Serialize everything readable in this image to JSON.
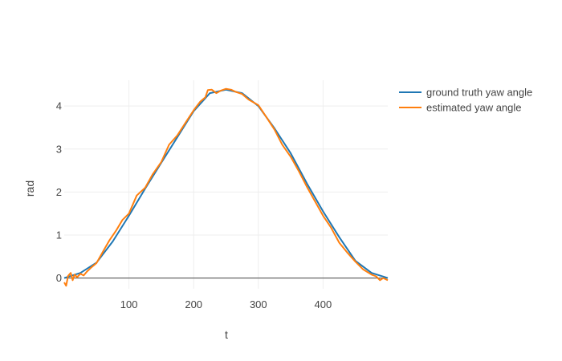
{
  "chart_data": {
    "type": "line",
    "title": "",
    "xlabel": "t",
    "ylabel": "rad",
    "xlim": [
      0,
      500
    ],
    "ylim": [
      -0.25,
      4.6
    ],
    "x_ticks": [
      100,
      200,
      300,
      400
    ],
    "y_ticks": [
      0,
      1,
      2,
      3,
      4
    ],
    "grid": true,
    "legend_position": "top-right",
    "series": [
      {
        "name": "ground truth yaw angle",
        "color": "#1f77b4",
        "x": [
          0,
          25,
          50,
          75,
          100,
          125,
          150,
          175,
          200,
          225,
          250,
          275,
          300,
          325,
          350,
          375,
          400,
          425,
          450,
          475,
          500
        ],
        "y": [
          0.0,
          0.12,
          0.36,
          0.85,
          1.45,
          2.08,
          2.68,
          3.28,
          3.88,
          4.3,
          4.38,
          4.3,
          4.0,
          3.48,
          2.9,
          2.2,
          1.55,
          0.95,
          0.4,
          0.12,
          0.0
        ]
      },
      {
        "name": "estimated yaw angle",
        "color": "#ff7f0e",
        "x": [
          0,
          3,
          6,
          10,
          13,
          16,
          20,
          25,
          30,
          35,
          42,
          50,
          60,
          70,
          80,
          90,
          100,
          112,
          125,
          137,
          150,
          162,
          175,
          187,
          200,
          210,
          218,
          222,
          228,
          235,
          242,
          250,
          258,
          265,
          275,
          285,
          300,
          312,
          325,
          337,
          350,
          362,
          375,
          387,
          400,
          412,
          425,
          437,
          450,
          462,
          475,
          482,
          488,
          493,
          500
        ],
        "y": [
          -0.1,
          -0.18,
          0.05,
          0.12,
          -0.05,
          0.08,
          0.02,
          0.1,
          0.06,
          0.15,
          0.25,
          0.35,
          0.62,
          0.88,
          1.1,
          1.35,
          1.5,
          1.92,
          2.1,
          2.42,
          2.7,
          3.1,
          3.32,
          3.6,
          3.9,
          4.1,
          4.2,
          4.37,
          4.38,
          4.3,
          4.36,
          4.4,
          4.38,
          4.33,
          4.28,
          4.15,
          4.02,
          3.75,
          3.45,
          3.1,
          2.82,
          2.5,
          2.12,
          1.8,
          1.45,
          1.18,
          0.82,
          0.6,
          0.38,
          0.2,
          0.08,
          0.04,
          -0.05,
          0.0,
          -0.05
        ]
      }
    ]
  }
}
